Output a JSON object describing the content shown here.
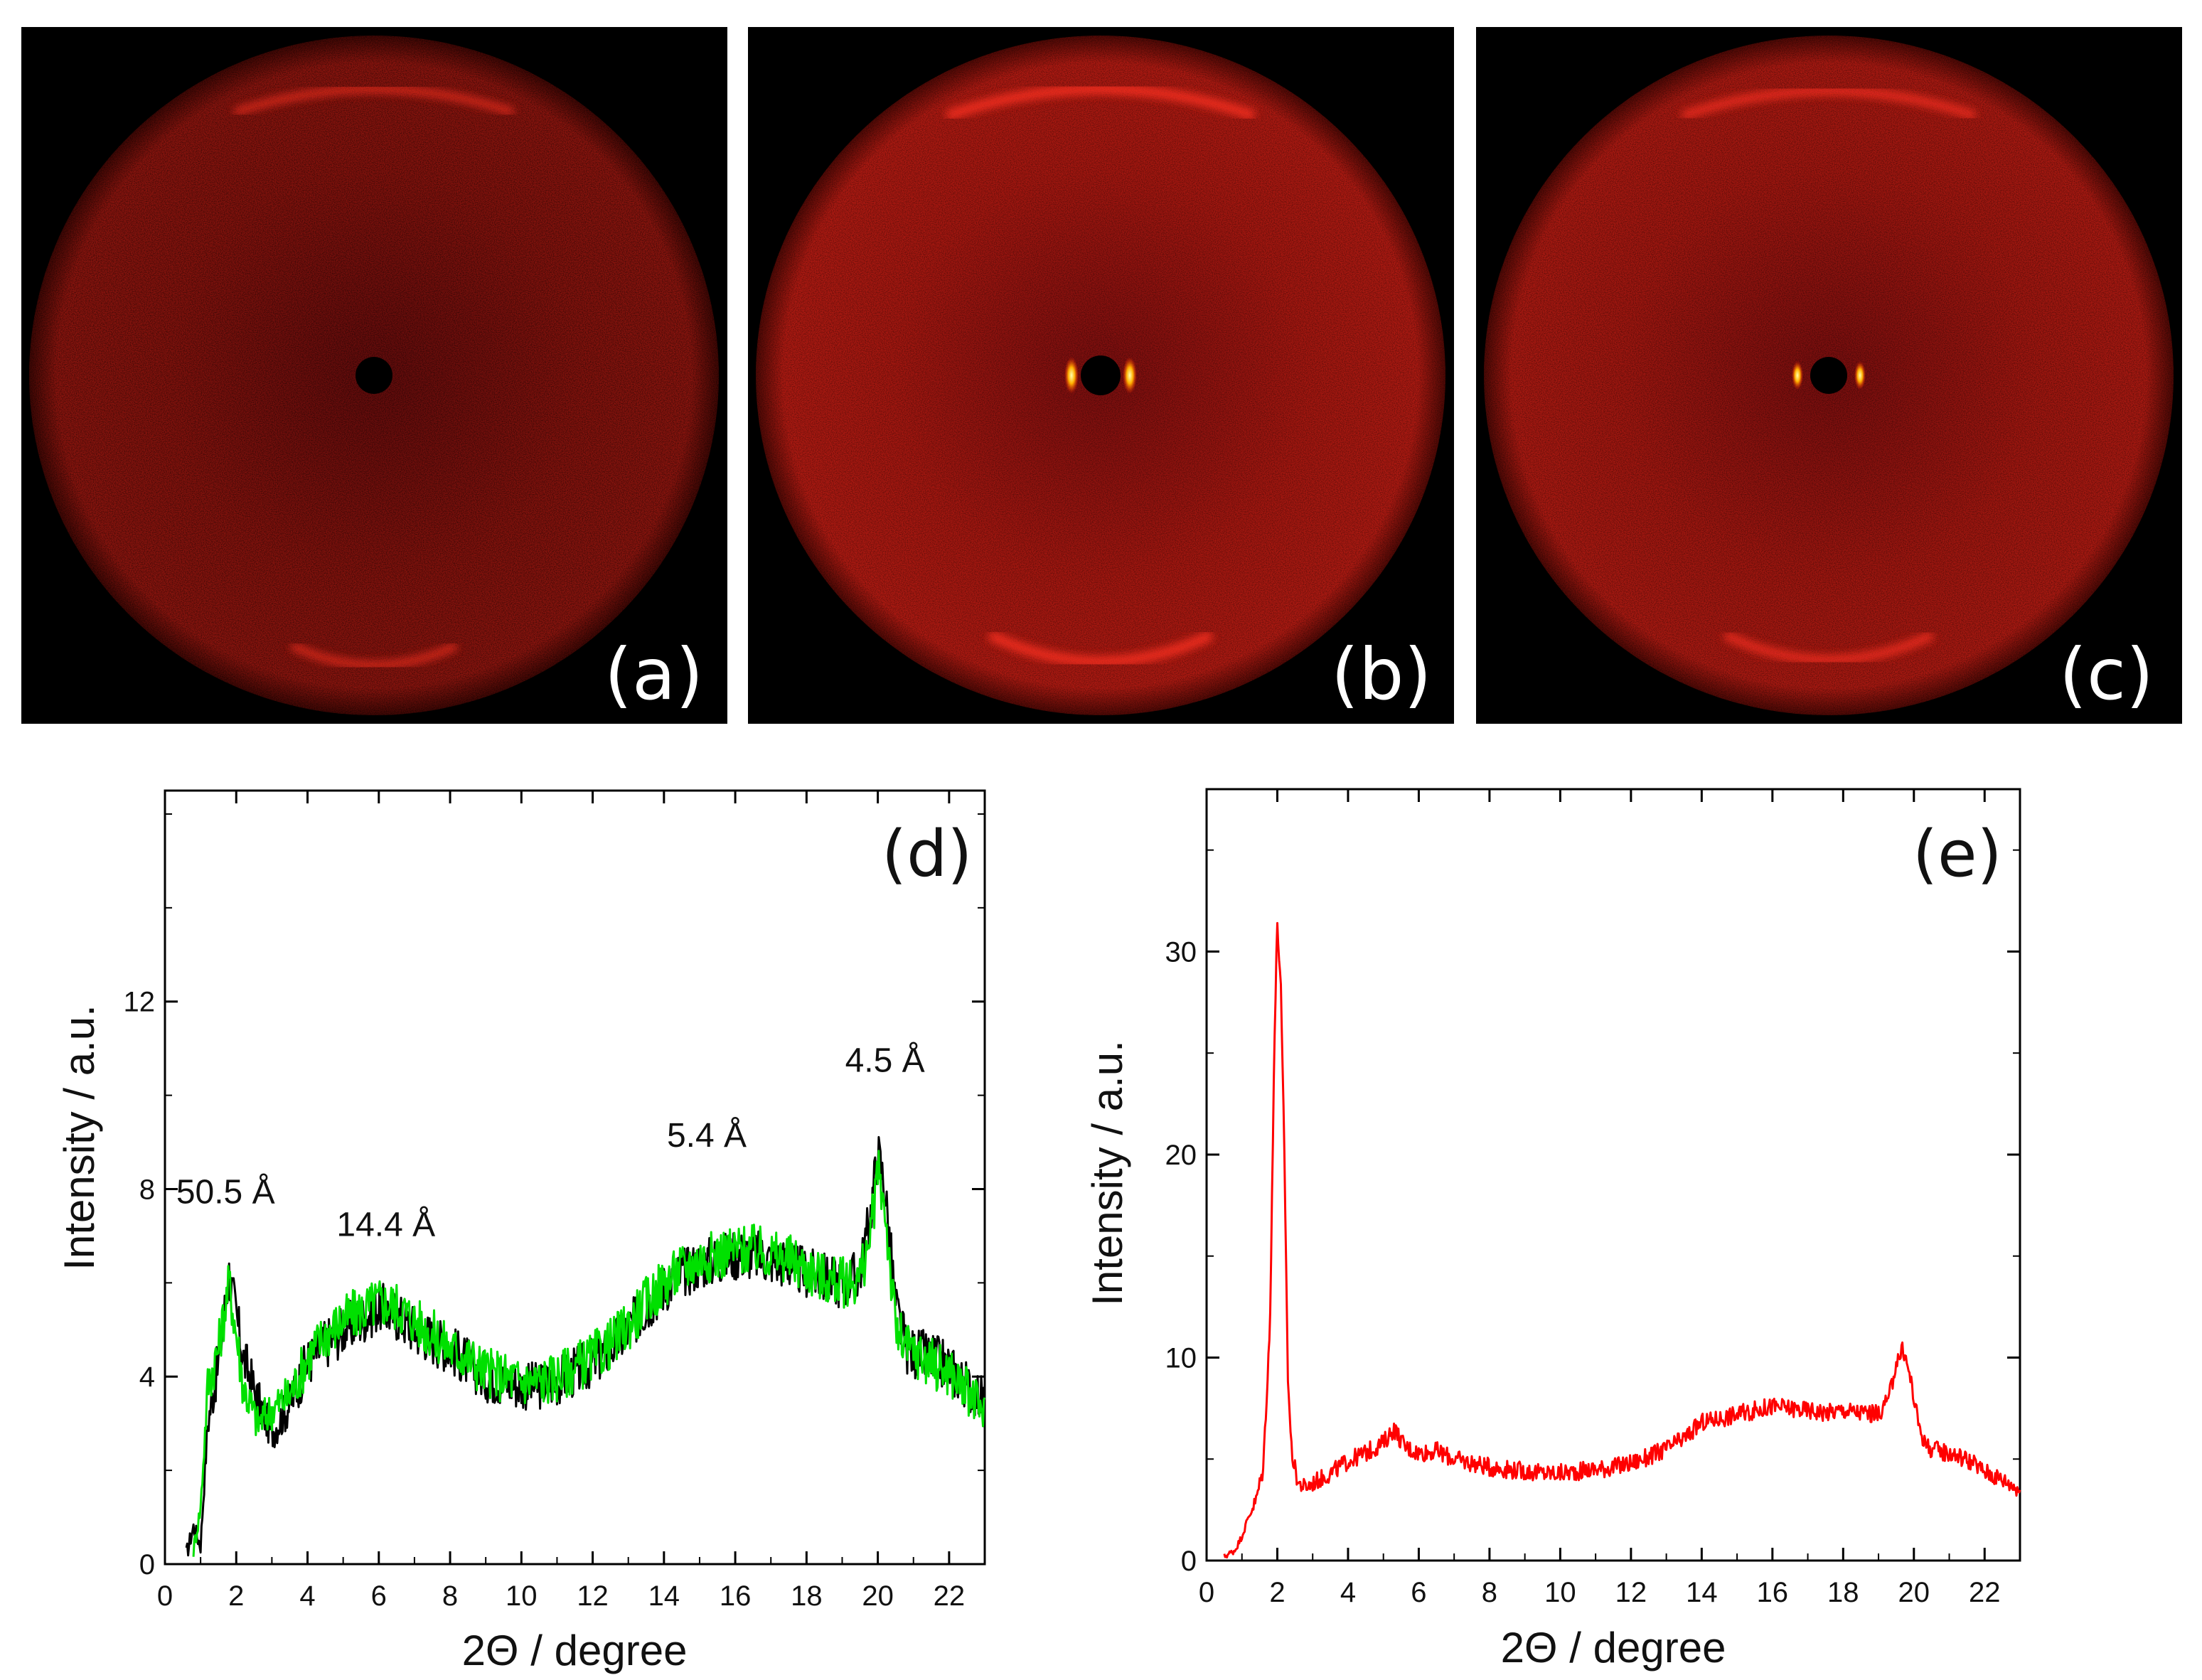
{
  "panels_images": [
    {
      "label": "(a)",
      "center_spots": false
    },
    {
      "label": "(b)",
      "center_spots": true
    },
    {
      "label": "(c)",
      "center_spots": true
    }
  ],
  "colors": {
    "pattern": "#ff2a1a",
    "series_black": "#000000",
    "series_green": "#00e000",
    "series_red": "#ff0000"
  },
  "chart_data": [
    {
      "type": "line",
      "panel_label": "(d)",
      "xlabel": "2Θ / degree",
      "ylabel": "Intensity / a.u.",
      "xlim": [
        0,
        23
      ],
      "ylim": [
        0,
        16.5
      ],
      "xticks": [
        0,
        2,
        4,
        6,
        8,
        10,
        12,
        14,
        16,
        18,
        20,
        22
      ],
      "yticks": [
        0,
        4,
        8,
        12
      ],
      "annotations": [
        {
          "text": "50.5 Å",
          "x": 1.7,
          "y": 7.7
        },
        {
          "text": "14.4 Å",
          "x": 6.2,
          "y": 7.0
        },
        {
          "text": "5.4 Å",
          "x": 15.2,
          "y": 8.9
        },
        {
          "text": "4.5 Å",
          "x": 20.2,
          "y": 10.5
        }
      ],
      "series": [
        {
          "name": "black",
          "color": "#000000",
          "x": [
            0.6,
            0.8,
            1.0,
            1.2,
            1.5,
            1.8,
            2.2,
            2.6,
            3.0,
            3.5,
            4.0,
            4.5,
            5.0,
            5.5,
            6.0,
            6.5,
            7.0,
            7.5,
            8.0,
            8.5,
            9.0,
            9.5,
            10.0,
            10.5,
            11.0,
            11.5,
            12.0,
            12.5,
            13.0,
            13.5,
            14.0,
            14.5,
            15.0,
            15.5,
            16.0,
            16.5,
            17.0,
            17.5,
            18.0,
            18.5,
            19.0,
            19.5,
            19.8,
            20.0,
            20.2,
            20.5,
            20.8,
            21.0,
            21.5,
            22.0,
            22.5,
            23.0
          ],
          "y": [
            0.2,
            0.8,
            0.4,
            3.0,
            4.3,
            6.2,
            4.4,
            3.5,
            2.8,
            3.4,
            4.3,
            4.7,
            5.0,
            5.2,
            5.5,
            5.3,
            5.0,
            4.8,
            4.6,
            4.3,
            4.0,
            3.9,
            3.8,
            3.8,
            3.9,
            4.1,
            4.3,
            4.6,
            5.0,
            5.5,
            5.9,
            6.2,
            6.4,
            6.5,
            6.6,
            6.6,
            6.5,
            6.4,
            6.2,
            6.1,
            6.0,
            6.2,
            7.5,
            8.8,
            8.0,
            5.5,
            4.6,
            4.5,
            4.4,
            4.2,
            3.8,
            3.5
          ]
        },
        {
          "name": "green",
          "color": "#00e000",
          "x": [
            0.8,
            1.0,
            1.2,
            1.5,
            1.8,
            2.2,
            2.6,
            3.0,
            3.5,
            4.0,
            4.5,
            5.0,
            5.5,
            6.0,
            6.5,
            7.0,
            7.5,
            8.0,
            8.5,
            9.0,
            9.5,
            10.0,
            10.5,
            11.0,
            11.5,
            12.0,
            12.5,
            13.0,
            13.5,
            14.0,
            14.5,
            15.0,
            15.5,
            16.0,
            16.5,
            17.0,
            17.5,
            18.0,
            18.5,
            19.0,
            19.5,
            19.8,
            20.0,
            20.2,
            20.5,
            20.8,
            21.0,
            21.5,
            22.0,
            22.5,
            23.0
          ],
          "y": [
            0.3,
            1.2,
            3.8,
            4.6,
            6.0,
            3.8,
            3.0,
            3.3,
            3.6,
            4.4,
            4.9,
            5.2,
            5.4,
            5.6,
            5.5,
            5.2,
            4.9,
            4.6,
            4.4,
            4.1,
            4.0,
            3.9,
            3.9,
            4.0,
            4.2,
            4.4,
            4.7,
            5.1,
            5.6,
            6.0,
            6.3,
            6.5,
            6.6,
            6.7,
            6.7,
            6.6,
            6.5,
            6.3,
            6.1,
            6.0,
            6.1,
            7.0,
            8.4,
            7.6,
            5.0,
            4.6,
            4.5,
            4.3,
            4.1,
            3.7,
            3.2
          ]
        }
      ]
    },
    {
      "type": "line",
      "panel_label": "(e)",
      "xlabel": "2Θ / degree",
      "ylabel": "Intensity / a.u.",
      "xlim": [
        0,
        23
      ],
      "ylim": [
        0,
        38
      ],
      "xticks": [
        0,
        2,
        4,
        6,
        8,
        10,
        12,
        14,
        16,
        18,
        20,
        22
      ],
      "yticks": [
        0,
        10,
        20,
        30
      ],
      "series": [
        {
          "name": "red",
          "color": "#ff0000",
          "x": [
            0.5,
            0.8,
            1.0,
            1.2,
            1.4,
            1.6,
            1.8,
            1.9,
            2.0,
            2.1,
            2.2,
            2.3,
            2.4,
            2.5,
            2.6,
            2.8,
            3.0,
            3.5,
            4.0,
            4.5,
            5.0,
            5.3,
            5.6,
            6.0,
            6.5,
            7.0,
            7.5,
            8.0,
            8.5,
            9.0,
            9.5,
            10.0,
            10.5,
            11.0,
            11.5,
            12.0,
            12.5,
            13.0,
            13.5,
            14.0,
            14.5,
            15.0,
            15.5,
            16.0,
            16.5,
            17.0,
            17.5,
            18.0,
            18.5,
            19.0,
            19.3,
            19.5,
            19.7,
            19.9,
            20.1,
            20.3,
            20.5,
            21.0,
            21.5,
            22.0,
            22.5,
            23.0
          ],
          "y": [
            0.2,
            0.5,
            1.2,
            2.2,
            3.0,
            4.5,
            12.0,
            24.0,
            31.5,
            28.0,
            20.0,
            9.0,
            5.5,
            4.5,
            3.8,
            3.6,
            3.8,
            4.3,
            4.9,
            5.3,
            5.8,
            6.5,
            5.6,
            5.3,
            5.4,
            5.0,
            4.8,
            4.6,
            4.5,
            4.4,
            4.3,
            4.3,
            4.4,
            4.5,
            4.6,
            4.8,
            5.1,
            5.5,
            6.0,
            6.8,
            7.0,
            7.2,
            7.4,
            7.6,
            7.5,
            7.4,
            7.3,
            7.4,
            7.3,
            7.2,
            8.0,
            9.8,
            10.4,
            9.0,
            7.0,
            5.8,
            5.5,
            5.3,
            5.0,
            4.4,
            4.0,
            3.5
          ]
        }
      ]
    }
  ]
}
